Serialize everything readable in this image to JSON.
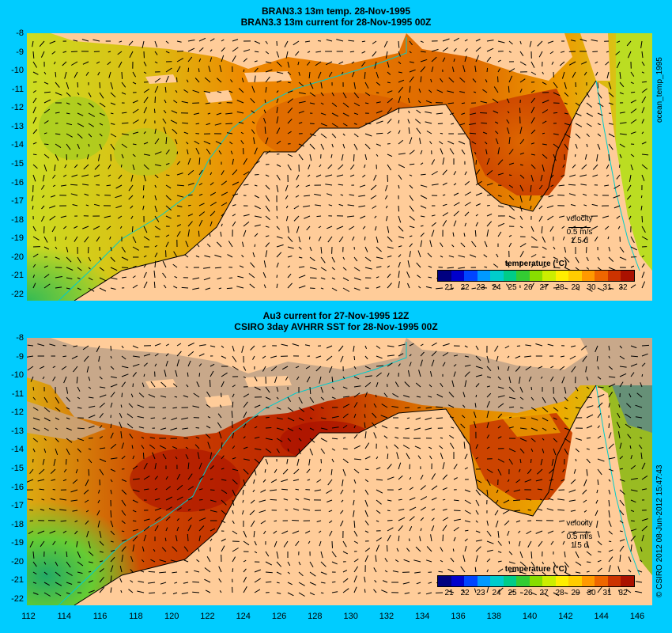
{
  "top_panel": {
    "title_line1": "BRAN3.3 13m temp. 28-Nov-1995",
    "title_line2": "BRAN3.3 13m current for 28-Nov-1995 00Z",
    "side_label": "ocean_temp_1995"
  },
  "bottom_panel": {
    "title_line1": "Au3 current for 27-Nov-1995 12Z",
    "title_line2": "CSIRO 3day AVHRR SST for 28-Nov-1995 00Z",
    "side_label": "© CSIRO 2012   08-Jun-2012 15:47:43"
  },
  "velocity_legend": {
    "title": "velocity",
    "speed": "0.5 m/s",
    "duration": "1.5 d"
  },
  "colorbar": {
    "title": "temperature (°C)",
    "tick_labels": [
      "21",
      "22",
      "23",
      "24",
      "25",
      "26",
      "27",
      "28",
      "29",
      "30",
      "31",
      "32"
    ],
    "colors": [
      "#000080",
      "#0000cc",
      "#0044ff",
      "#0099ff",
      "#00cccc",
      "#00cc88",
      "#33cc33",
      "#88dd00",
      "#ccee00",
      "#ffee00",
      "#ffcc00",
      "#ff9900",
      "#ee6600",
      "#cc3300",
      "#aa1100"
    ]
  },
  "colors": {
    "land": "#ffcc99",
    "no_data": "#c8a88a",
    "frame": "#00ccff",
    "coast": "#00cccc"
  },
  "y_ticks": [
    "-8",
    "-9",
    "-10",
    "-11",
    "-12",
    "-13",
    "-14",
    "-15",
    "-16",
    "-17",
    "-18",
    "-19",
    "-20",
    "-21",
    "-22"
  ],
  "x_ticks": [
    "112",
    "114",
    "116",
    "118",
    "120",
    "122",
    "124",
    "126",
    "128",
    "130",
    "132",
    "134",
    "136",
    "138",
    "140",
    "142",
    "144",
    "146"
  ]
}
